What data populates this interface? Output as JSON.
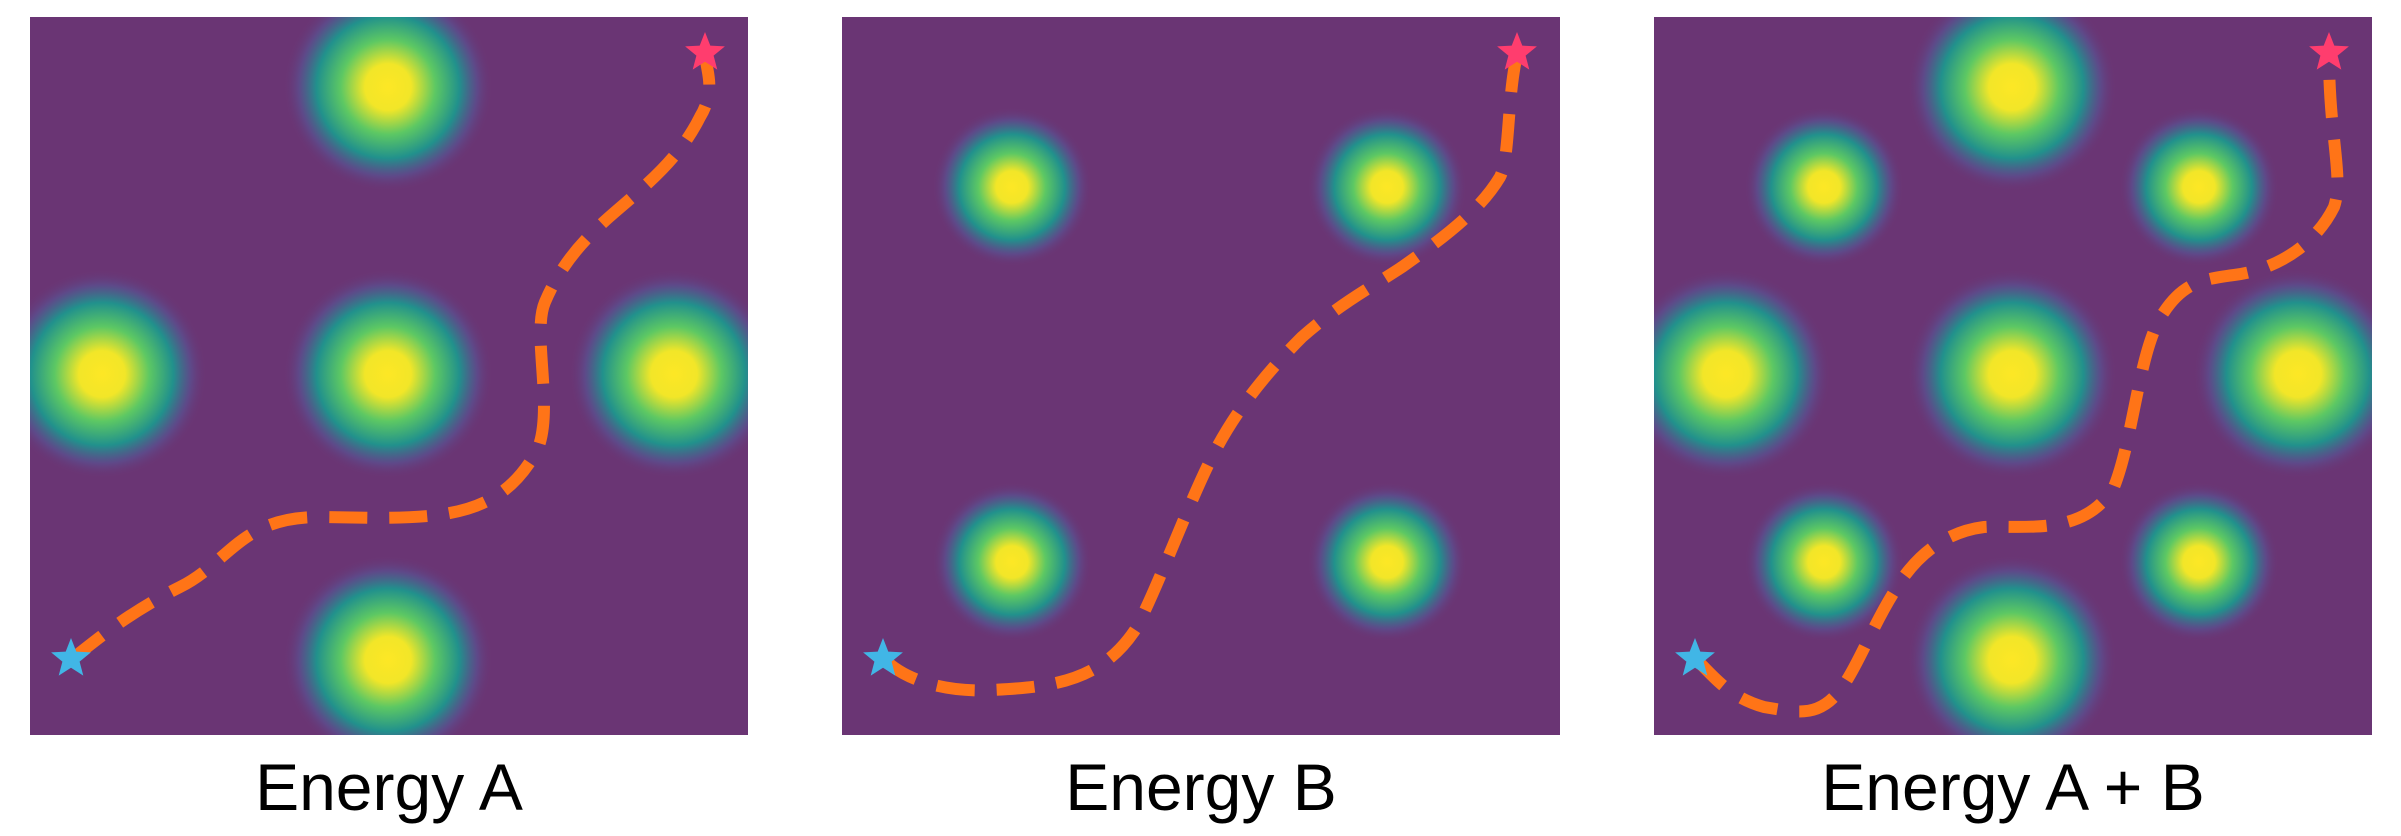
{
  "figure": {
    "colors": {
      "background": "#6a3574",
      "peak_core": "#fde725",
      "peak_mid": "#5dc863",
      "peak_ring": "#21918c",
      "path": "#ff7417",
      "start_marker": "#41b6e6",
      "end_marker": "#ff3d6e"
    },
    "panels": [
      {
        "id": "energy-a",
        "caption": "Energy A"
      },
      {
        "id": "energy-b",
        "caption": "Energy B"
      },
      {
        "id": "energy-a-plus-b",
        "caption": "Energy A + B"
      }
    ],
    "markers": {
      "start_icon": "star-icon",
      "end_icon": "star-icon"
    }
  }
}
